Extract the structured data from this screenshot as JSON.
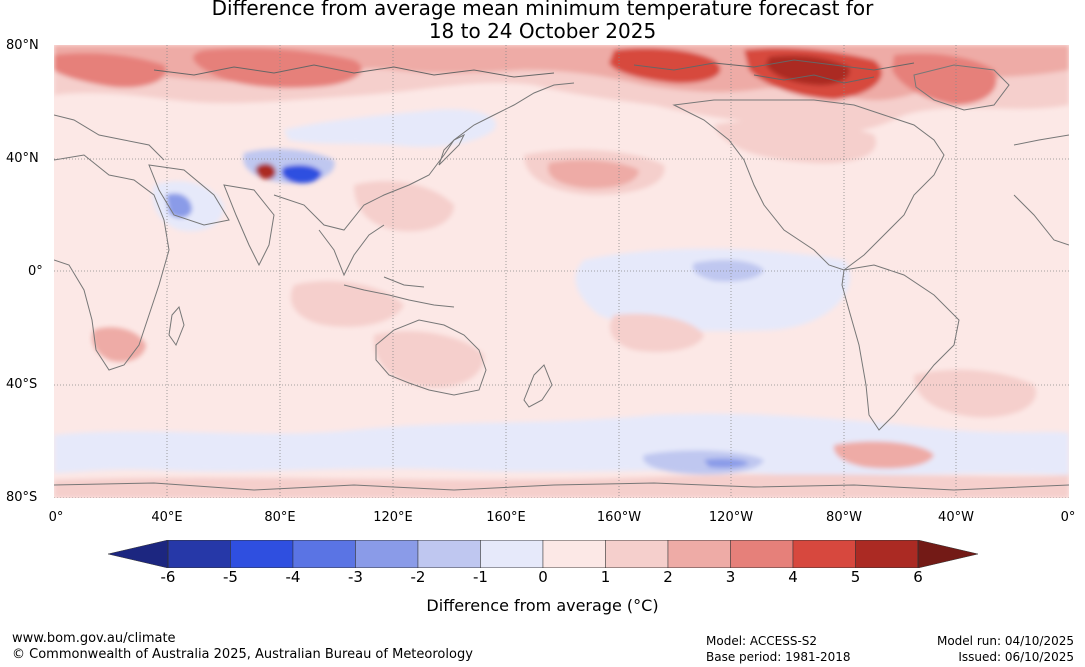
{
  "header": {
    "title_line1": "Difference from average mean minimum temperature forecast for",
    "title_line2": "18 to 24 October 2025"
  },
  "map": {
    "lat_labels": [
      "80°N",
      "40°N",
      "0°",
      "40°S",
      "80°S"
    ],
    "lon_labels": [
      "0°",
      "40°E",
      "80°E",
      "120°E",
      "160°E",
      "160°W",
      "120°W",
      "80°W",
      "40°W",
      "0°"
    ]
  },
  "legend": {
    "title": "Difference from average (°C)",
    "ticks": [
      "-6",
      "-5",
      "-4",
      "-3",
      "-2",
      "-1",
      "0",
      "1",
      "2",
      "3",
      "4",
      "5",
      "6"
    ],
    "colors": {
      "below_min": "#1c2680",
      "bins": [
        "#2638a8",
        "#2f4fe0",
        "#5a74e4",
        "#8a9be8",
        "#bfc7f0",
        "#e6e9fa",
        "#fce8e6",
        "#f5cfcc",
        "#eeaba6",
        "#e6807a",
        "#d7483e",
        "#ab2a23"
      ],
      "above_max": "#731a16"
    }
  },
  "footer": {
    "website": "www.bom.gov.au/climate",
    "copyright": "© Commonwealth of Australia 2025, Australian Bureau of Meteorology",
    "model": "Model: ACCESS-S2",
    "base_period": "Base period: 1981-2018",
    "model_run": "Model run: 04/10/2025",
    "issued": "Issued: 06/10/2025"
  }
}
